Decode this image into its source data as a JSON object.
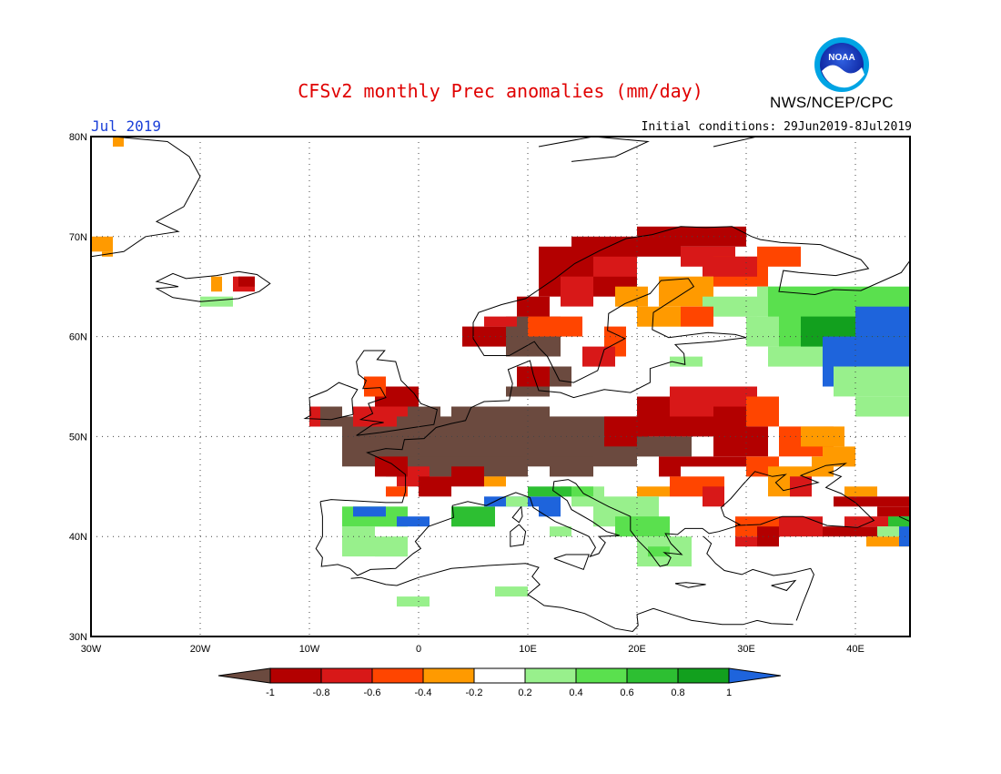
{
  "header": {
    "title": "CFSv2 monthly Prec anomalies (mm/day)",
    "organization": "NWS/NCEP/CPC",
    "logo_text": "NOAA",
    "month_label": "Jul 2019",
    "initial_conditions": "Initial conditions: 29Jun2019-8Jul2019"
  },
  "map": {
    "lon_range": [
      -30,
      45
    ],
    "lat_range": [
      30,
      80
    ],
    "grid": true,
    "lon_ticks": [
      "30W",
      "20W",
      "10W",
      "0",
      "10E",
      "20E",
      "30E",
      "40E"
    ],
    "lat_ticks": [
      "30N",
      "40N",
      "50N",
      "60N",
      "70N",
      "80N"
    ]
  },
  "colorbar": {
    "labels": [
      "-1",
      "-0.8",
      "-0.6",
      "-0.4",
      "-0.2",
      "0.2",
      "0.4",
      "0.6",
      "0.8",
      "1"
    ],
    "colors": [
      "#6b4a3f",
      "#b30000",
      "#d81818",
      "#ff4500",
      "#ff9a00",
      "#ffffff",
      "#98f08c",
      "#5ae04e",
      "#2dbf32",
      "#12a01e",
      "#1e64dc"
    ]
  },
  "colors": {
    "title": "#e00000",
    "month_label": "#1a3fd8",
    "coast": "#000000"
  }
}
